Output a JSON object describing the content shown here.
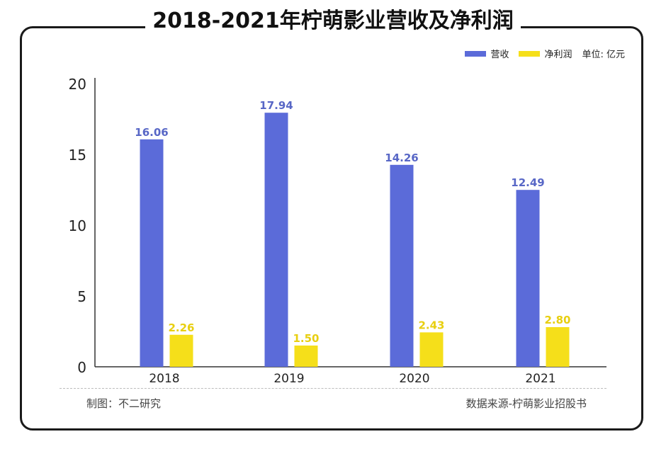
{
  "title": "2018-2021年柠萌影业营收及净利润",
  "legend": {
    "unit": "单位: 亿元"
  },
  "footer": {
    "left": "制图：不二研究",
    "right": "数据来源-柠萌影业招股书"
  },
  "colors": {
    "revenue": "#5b6bd9",
    "net_profit": "#f5df1a",
    "revenue_label": "#5867c6",
    "profit_label": "#e8cf10"
  },
  "chart_data": {
    "type": "bar",
    "categories": [
      "2018",
      "2019",
      "2020",
      "2021"
    ],
    "series": [
      {
        "name": "营收",
        "values": [
          16.06,
          17.94,
          14.26,
          12.49
        ]
      },
      {
        "name": "净利润",
        "values": [
          2.26,
          1.5,
          2.43,
          2.8
        ]
      }
    ],
    "yticks": [
      "0",
      "5",
      "10",
      "15",
      "20"
    ],
    "ylim": [
      0,
      20
    ],
    "grid": false,
    "legend_position": "top-right",
    "xlabel": "",
    "ylabel": ""
  }
}
